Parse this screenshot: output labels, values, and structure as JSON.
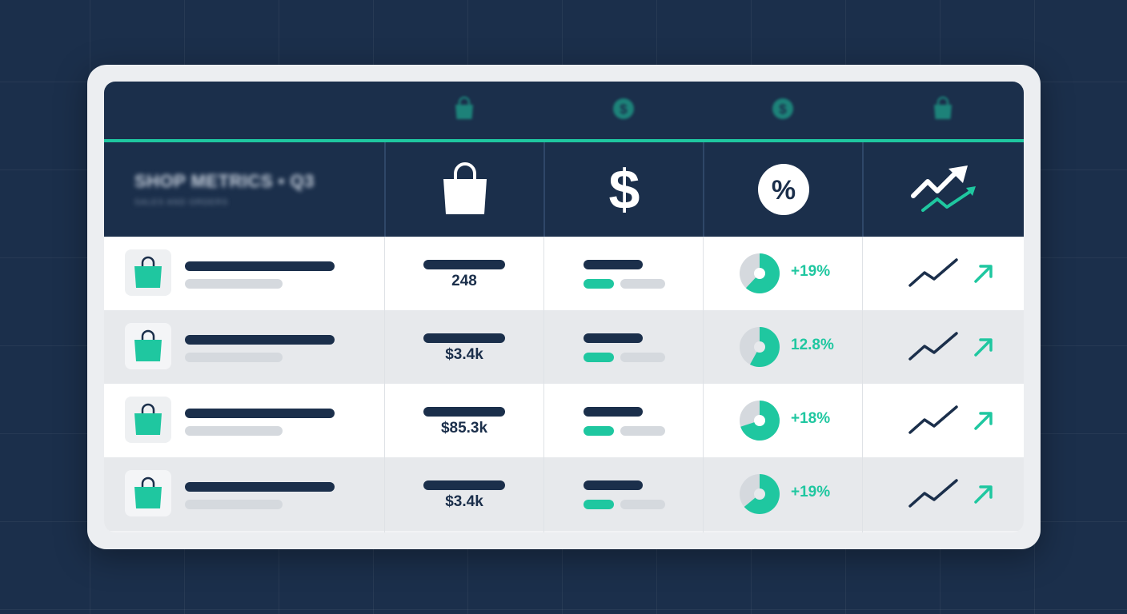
{
  "header": {
    "title": "SHOP METRICS • Q3",
    "subtitle": "SALES AND ORDERS",
    "top_icons": [
      "shopping-bag-icon",
      "dollar-coin-icon",
      "dollar-coin-icon",
      "shopping-bag-icon"
    ],
    "column_icons": [
      "shopping-bag-icon",
      "dollar-icon",
      "percent-icon",
      "trend-up-icon"
    ]
  },
  "rows": [
    {
      "icon": "shopping-bag-icon",
      "value": "248",
      "change": "+19%",
      "pie_fraction": 0.62,
      "trend": "up"
    },
    {
      "icon": "shopping-bag-icon",
      "value": "$3.4k",
      "change": "12.8%",
      "pie_fraction": 0.58,
      "trend": "up"
    },
    {
      "icon": "shopping-bag-icon",
      "value": "$85.3k",
      "change": "+18%",
      "pie_fraction": 0.7,
      "trend": "up"
    },
    {
      "icon": "shopping-bag-icon",
      "value": "$3.4k",
      "change": "+19%",
      "pie_fraction": 0.64,
      "trend": "up"
    }
  ],
  "colors": {
    "navy": "#1b2f4b",
    "accent": "#1fc7a0",
    "row_alt": "#e7e9ec",
    "placeholder": "#d5d9de"
  }
}
